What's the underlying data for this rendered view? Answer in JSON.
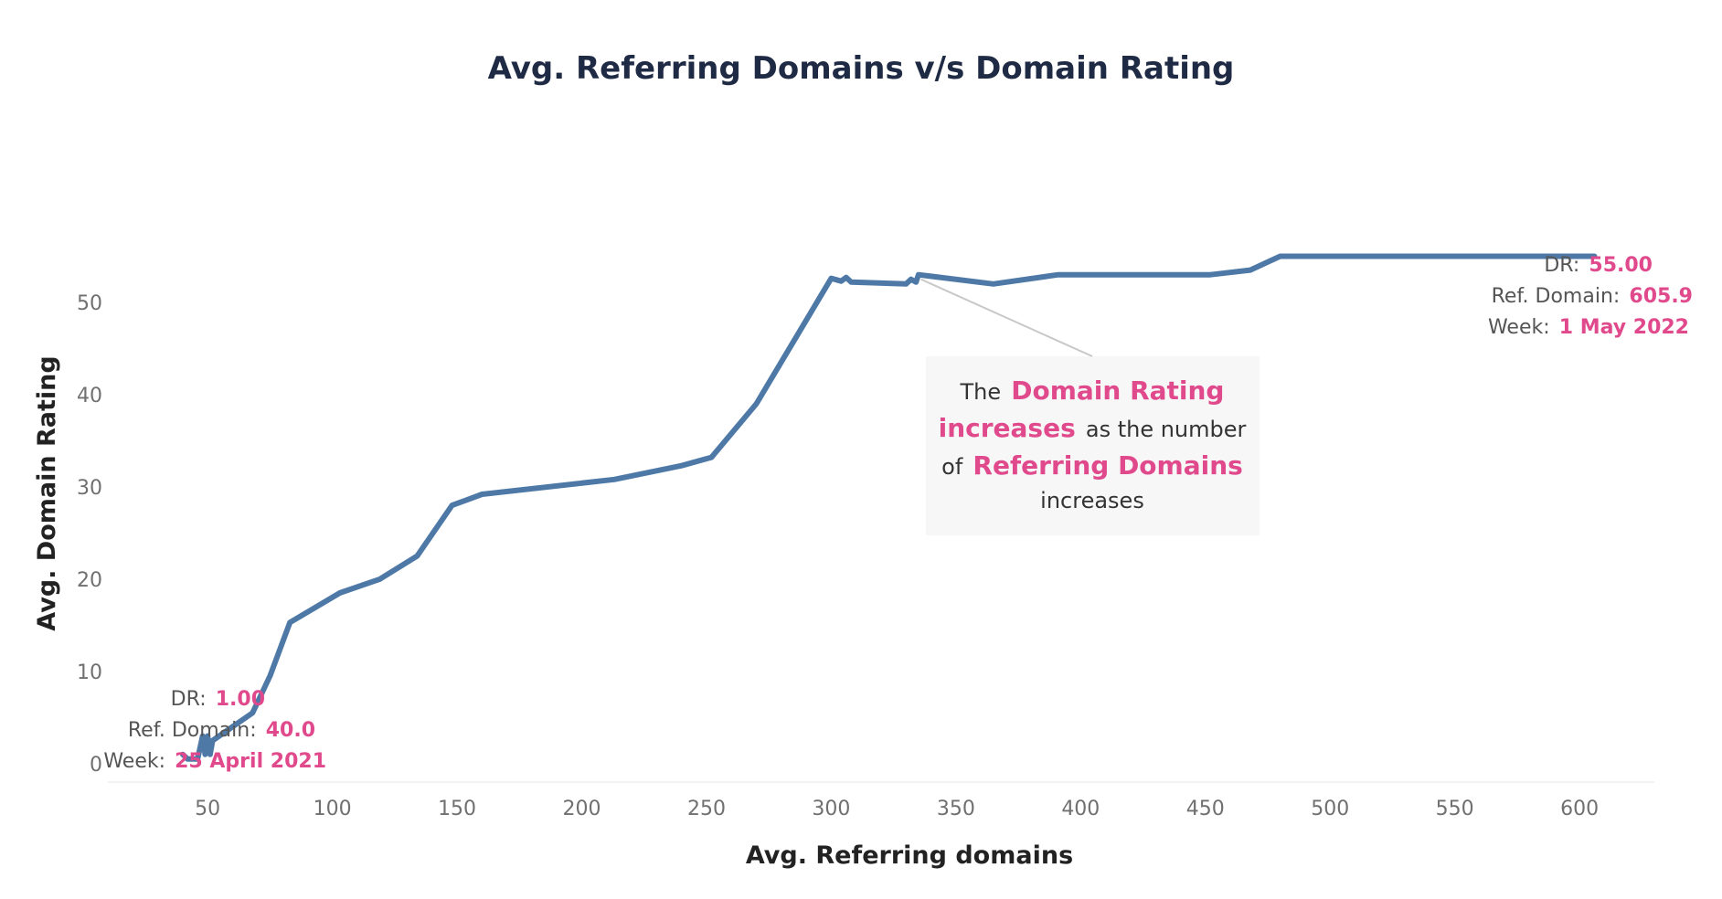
{
  "chart_data": {
    "type": "line",
    "title": "Avg. Referring Domains v/s Domain Rating",
    "xlabel": "Avg. Referring domains",
    "ylabel": "Avg. Domain Rating",
    "x_ticks": [
      50,
      100,
      150,
      200,
      250,
      300,
      350,
      400,
      450,
      500,
      550,
      600
    ],
    "y_ticks": [
      0,
      10,
      20,
      30,
      40,
      50
    ],
    "xlim": [
      10,
      630
    ],
    "ylim": [
      -2,
      60
    ],
    "grid": false,
    "line_color": "#4e79a7",
    "highlight_color": "#e04a8c",
    "series": [
      {
        "points": [
          [
            40,
            1.0
          ],
          [
            42,
            0.5
          ],
          [
            46,
            0.5
          ],
          [
            48,
            3.0
          ],
          [
            49,
            1.0
          ],
          [
            50,
            3.0
          ],
          [
            51,
            1.0
          ],
          [
            52,
            2.5
          ],
          [
            60,
            4.0
          ],
          [
            68,
            5.5
          ],
          [
            75,
            9.5
          ],
          [
            83,
            15.3
          ],
          [
            103,
            18.5
          ],
          [
            119,
            20.0
          ],
          [
            134,
            22.5
          ],
          [
            148,
            28.0
          ],
          [
            160,
            29.2
          ],
          [
            213,
            30.8
          ],
          [
            240,
            32.3
          ],
          [
            252,
            33.2
          ],
          [
            270,
            39.0
          ],
          [
            300,
            52.6
          ],
          [
            304,
            52.3
          ],
          [
            306,
            52.7
          ],
          [
            308,
            52.2
          ],
          [
            330,
            52.0
          ],
          [
            332,
            52.5
          ],
          [
            334,
            52.2
          ],
          [
            335,
            53.0
          ],
          [
            365,
            52.0
          ],
          [
            391,
            53.0
          ],
          [
            452,
            53.0
          ],
          [
            468,
            53.5
          ],
          [
            480,
            55.0
          ],
          [
            606,
            55.0
          ]
        ]
      }
    ],
    "annotations": {
      "start": {
        "dr_label": "DR:",
        "dr_value": "1.00",
        "ref_label": "Ref. Domain:",
        "ref_value": "40.0",
        "week_label": "Week:",
        "week_value": "25 April 2021"
      },
      "end": {
        "dr_label": "DR:",
        "dr_value": "55.00",
        "ref_label": "Ref. Domain:",
        "ref_value": "605.9",
        "week_label": "Week:",
        "week_value": "1 May 2022"
      },
      "callout": {
        "pointer": [
          336,
          52.5
        ],
        "the": "The",
        "domain_rating": "Domain Rating",
        "increases_hl": "increases",
        "as_the_number": "as the number",
        "of": "of",
        "referring_domains": "Referring Domains",
        "increases_end": "increases"
      }
    }
  }
}
